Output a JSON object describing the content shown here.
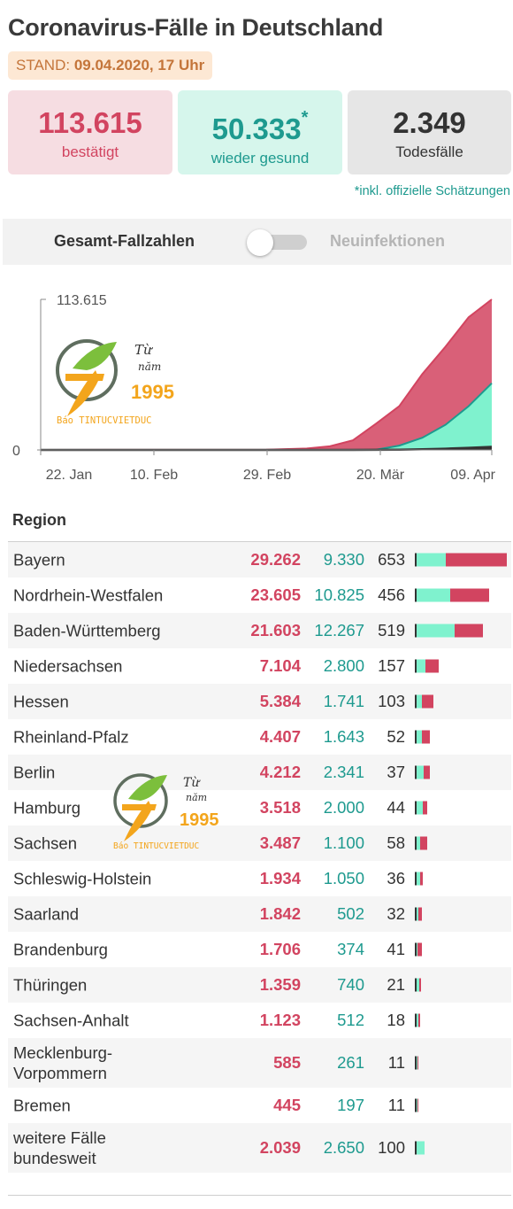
{
  "header": {
    "title": "Coronavirus-Fälle in Deutschland",
    "stand_label": "STAND:",
    "stand_date": "09.04.2020, 17 Uhr"
  },
  "cards": {
    "confirmed": {
      "value": "113.615",
      "label": "bestätigt"
    },
    "recovered": {
      "value": "50.333",
      "star": "*",
      "label": "wieder gesund"
    },
    "deaths": {
      "value": "2.349",
      "label": "Todesfälle"
    }
  },
  "footnote": "*inkl. offizielle Schätzungen",
  "toggle": {
    "left_label": "Gesamt-Fallzahlen",
    "right_label": "Neuinfektionen",
    "state": "off"
  },
  "watermark": {
    "line1": "Từ",
    "line2": "năm",
    "year": "1995",
    "brand": "Báo TINTUCVIETDUC"
  },
  "colors": {
    "confirmed": "#d24460",
    "recovered": "#1e9a8f",
    "recovered_fill": "#7ff2ce",
    "deaths": "#333333"
  },
  "chart_data": {
    "type": "area",
    "ymax_label": "113.615",
    "ylim": [
      0,
      113615
    ],
    "y_ticks": [
      "0",
      "113.615"
    ],
    "x_ticks": [
      "22. Jan",
      "10. Feb",
      "29. Feb",
      "20. Mär",
      "09. Apr"
    ],
    "x": [
      "22.01",
      "01.03",
      "08.03",
      "12.03",
      "16.03",
      "20.03",
      "24.03",
      "28.03",
      "01.04",
      "05.04",
      "09.04"
    ],
    "series": [
      {
        "values": [
          14,
          130,
          1040,
          2750,
          7270,
          19850,
          32990,
          57300,
          77900,
          100100,
          113615
        ]
      },
      {
        "values": [
          0,
          16,
          18,
          25,
          67,
          180,
          3300,
          9200,
          19000,
          33000,
          50333
        ]
      },
      {
        "values": [
          0,
          0,
          2,
          6,
          17,
          68,
          157,
          455,
          931,
          1584,
          2349
        ]
      }
    ],
    "grid": false
  },
  "table": {
    "header": "Region",
    "rows": [
      {
        "name": "Bayern",
        "confirmed": "29.262",
        "recovered": "9.330",
        "deaths": "653",
        "c": 29262,
        "r": 9330
      },
      {
        "name": "Nordrhein-Westfalen",
        "confirmed": "23.605",
        "recovered": "10.825",
        "deaths": "456",
        "c": 23605,
        "r": 10825
      },
      {
        "name": "Baden-Württemberg",
        "confirmed": "21.603",
        "recovered": "12.267",
        "deaths": "519",
        "c": 21603,
        "r": 12267
      },
      {
        "name": "Niedersachsen",
        "confirmed": "7.104",
        "recovered": "2.800",
        "deaths": "157",
        "c": 7104,
        "r": 2800
      },
      {
        "name": "Hessen",
        "confirmed": "5.384",
        "recovered": "1.741",
        "deaths": "103",
        "c": 5384,
        "r": 1741
      },
      {
        "name": "Rheinland-Pfalz",
        "confirmed": "4.407",
        "recovered": "1.643",
        "deaths": "52",
        "c": 4407,
        "r": 1643
      },
      {
        "name": "Berlin",
        "confirmed": "4.212",
        "recovered": "2.341",
        "deaths": "37",
        "c": 4212,
        "r": 2341
      },
      {
        "name": "Hamburg",
        "confirmed": "3.518",
        "recovered": "2.000",
        "deaths": "44",
        "c": 3518,
        "r": 2000
      },
      {
        "name": "Sachsen",
        "confirmed": "3.487",
        "recovered": "1.100",
        "deaths": "58",
        "c": 3487,
        "r": 1100
      },
      {
        "name": "Schleswig-Holstein",
        "confirmed": "1.934",
        "recovered": "1.050",
        "deaths": "36",
        "c": 1934,
        "r": 1050
      },
      {
        "name": "Saarland",
        "confirmed": "1.842",
        "recovered": "502",
        "deaths": "32",
        "c": 1842,
        "r": 502
      },
      {
        "name": "Brandenburg",
        "confirmed": "1.706",
        "recovered": "374",
        "deaths": "41",
        "c": 1706,
        "r": 374
      },
      {
        "name": "Thüringen",
        "confirmed": "1.359",
        "recovered": "740",
        "deaths": "21",
        "c": 1359,
        "r": 740
      },
      {
        "name": "Sachsen-Anhalt",
        "confirmed": "1.123",
        "recovered": "512",
        "deaths": "18",
        "c": 1123,
        "r": 512
      },
      {
        "name": "Mecklenburg-Vorpommern",
        "name_lines": [
          "Mecklenburg-",
          "Vorpommern"
        ],
        "confirmed": "585",
        "recovered": "261",
        "deaths": "11",
        "c": 585,
        "r": 261
      },
      {
        "name": "Bremen",
        "confirmed": "445",
        "recovered": "197",
        "deaths": "11",
        "c": 445,
        "r": 197
      },
      {
        "name": "weitere Fälle bundesweit",
        "name_lines": [
          "weitere Fälle",
          "bundesweit"
        ],
        "confirmed": "2.039",
        "recovered": "2.650",
        "deaths": "100",
        "c": 2039,
        "r": 2650
      }
    ]
  }
}
